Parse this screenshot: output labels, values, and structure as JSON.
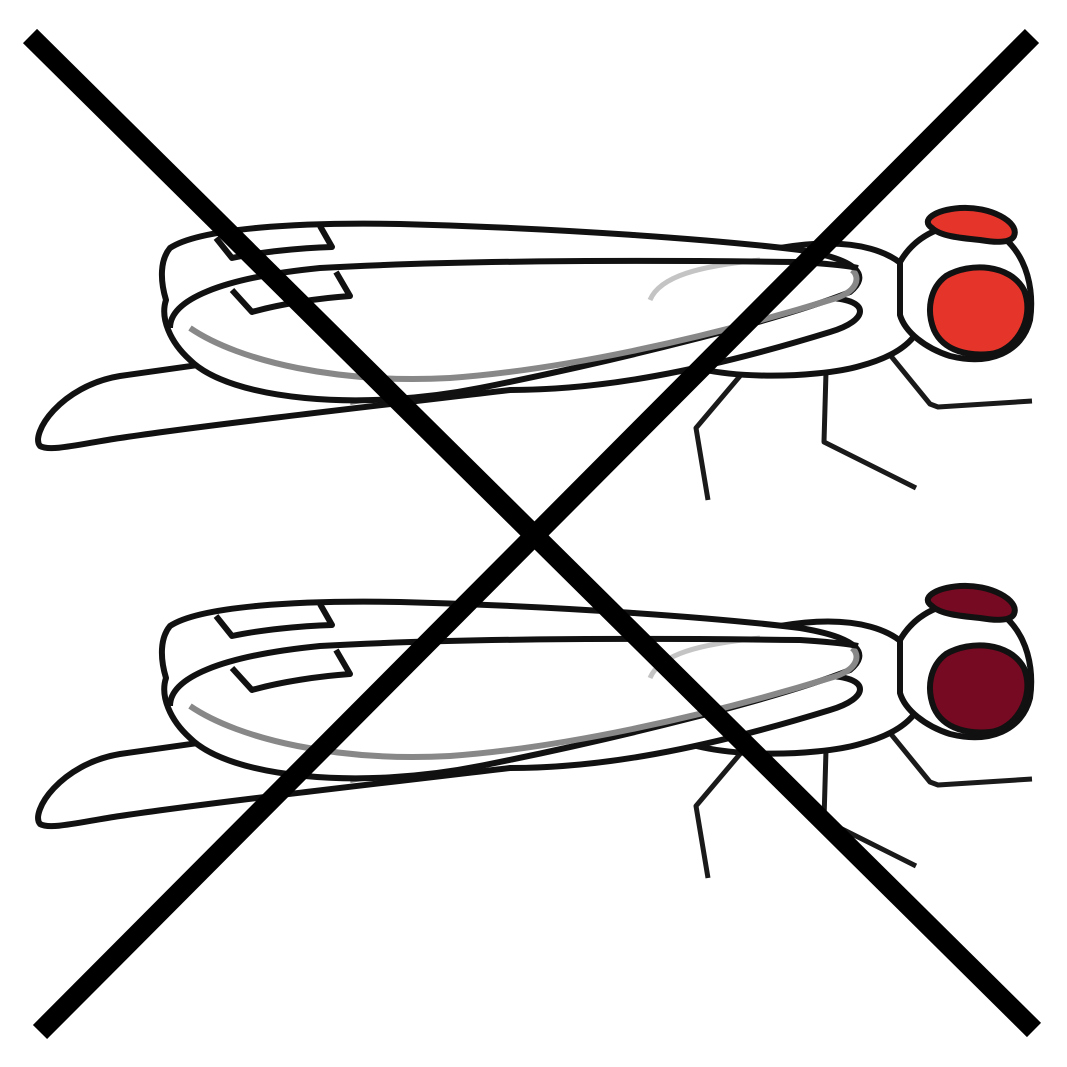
{
  "colors": {
    "background": "#ffffff",
    "outline": "#111111",
    "cross": "#000000",
    "fly_top_eye": "#e5352b",
    "fly_bottom_eye": "#760a22",
    "wing_vein_dark": "#888888",
    "wing_vein_light": "#c4c4c4"
  },
  "figures": [
    {
      "name": "fly-top",
      "eye_color": "#e5352b"
    },
    {
      "name": "fly-bottom",
      "eye_color": "#760a22"
    }
  ],
  "overlay": {
    "symbol": "cross-out-x"
  }
}
